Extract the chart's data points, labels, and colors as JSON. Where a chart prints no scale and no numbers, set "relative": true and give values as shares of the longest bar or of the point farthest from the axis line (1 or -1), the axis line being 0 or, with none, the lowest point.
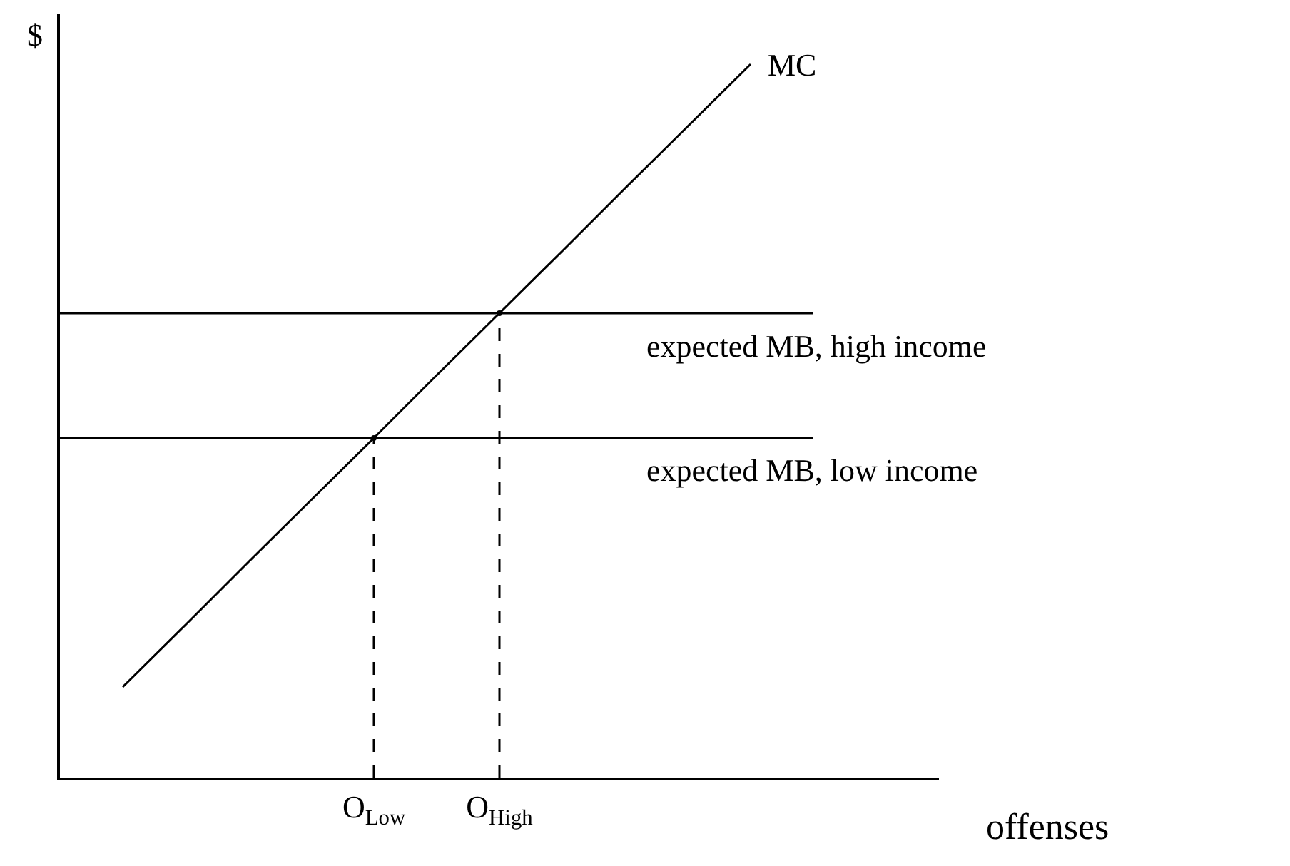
{
  "chart_data": {
    "type": "line",
    "relative": true,
    "xlabel": "offenses",
    "ylabel": "$",
    "categories": [
      null,
      null,
      null,
      null,
      null,
      "O$_{Low}$",
      null,
      "O$_{High}$",
      null,
      null,
      null,
      null,
      null,
      null,
      null
    ],
    "legend": false,
    "marker": "none",
    "series": [
      {
        "name": "MC",
        "color": "#000000",
        "values": [
          null,
          0.127,
          0.214,
          0.302,
          0.389,
          0.476,
          0.564,
          0.651,
          0.738,
          0.826,
          0.913,
          1,
          null,
          null,
          null
        ],
        "line_style": "solid"
      },
      {
        "name": "expected MB, high income",
        "color": "#000000",
        "values": [
          0.651,
          0.651,
          0.651,
          0.651,
          0.651,
          0.651,
          0.651,
          0.651,
          0.651,
          0.651,
          0.651,
          0.651,
          0.651,
          null,
          null
        ],
        "line_style": "solid"
      },
      {
        "name": "expected MB, low income",
        "color": "#000000",
        "values": [
          0.476,
          0.476,
          0.476,
          0.476,
          0.476,
          0.476,
          0.476,
          0.476,
          0.476,
          0.476,
          0.476,
          0.476,
          0.476,
          null,
          null
        ],
        "line_style": "solid"
      },
      {
        "type": "lollipop",
        "marker": "circle",
        "color": "#000000",
        "values": [
          null,
          null,
          null,
          null,
          null,
          0.476,
          null,
          0.651,
          null,
          null,
          null,
          null,
          null,
          null,
          null
        ],
        "line_style": "dashed"
      }
    ]
  }
}
